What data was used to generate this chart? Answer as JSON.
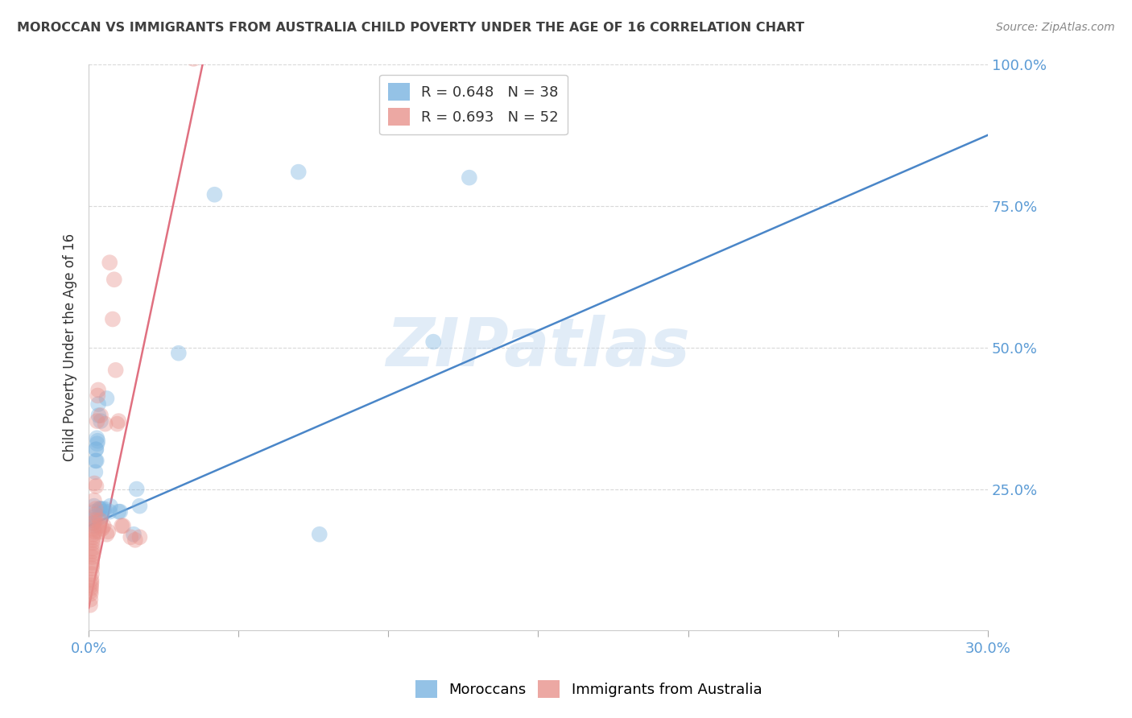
{
  "title": "MOROCCAN VS IMMIGRANTS FROM AUSTRALIA CHILD POVERTY UNDER THE AGE OF 16 CORRELATION CHART",
  "source": "Source: ZipAtlas.com",
  "ylabel_label": "Child Poverty Under the Age of 16",
  "blue_color": "#7ab3e0",
  "pink_color": "#e8928c",
  "blue_line_color": "#4a86c8",
  "pink_line_color": "#e07080",
  "axis_color": "#5b9bd5",
  "title_color": "#404040",
  "blue_scatter": [
    [
      0.0008,
      0.195
    ],
    [
      0.0015,
      0.19
    ],
    [
      0.0016,
      0.2
    ],
    [
      0.0017,
      0.185
    ],
    [
      0.0018,
      0.22
    ],
    [
      0.002,
      0.21
    ],
    [
      0.0022,
      0.28
    ],
    [
      0.0023,
      0.3
    ],
    [
      0.0024,
      0.32
    ],
    [
      0.0025,
      0.32
    ],
    [
      0.0026,
      0.3
    ],
    [
      0.0027,
      0.34
    ],
    [
      0.0028,
      0.33
    ],
    [
      0.003,
      0.335
    ],
    [
      0.0032,
      0.4
    ],
    [
      0.0033,
      0.38
    ],
    [
      0.0035,
      0.2
    ],
    [
      0.0036,
      0.215
    ],
    [
      0.0038,
      0.215
    ],
    [
      0.004,
      0.37
    ],
    [
      0.0042,
      0.2
    ],
    [
      0.0044,
      0.215
    ],
    [
      0.005,
      0.21
    ],
    [
      0.0052,
      0.215
    ],
    [
      0.006,
      0.41
    ],
    [
      0.007,
      0.21
    ],
    [
      0.0072,
      0.22
    ],
    [
      0.01,
      0.21
    ],
    [
      0.0105,
      0.21
    ],
    [
      0.015,
      0.17
    ],
    [
      0.016,
      0.25
    ],
    [
      0.017,
      0.22
    ],
    [
      0.03,
      0.49
    ],
    [
      0.042,
      0.77
    ],
    [
      0.07,
      0.81
    ],
    [
      0.077,
      0.17
    ],
    [
      0.115,
      0.51
    ],
    [
      0.127,
      0.8
    ]
  ],
  "pink_scatter": [
    [
      0.0005,
      0.045
    ],
    [
      0.0006,
      0.055
    ],
    [
      0.0007,
      0.065
    ],
    [
      0.0007,
      0.07
    ],
    [
      0.0008,
      0.075
    ],
    [
      0.0008,
      0.08
    ],
    [
      0.0009,
      0.085
    ],
    [
      0.0009,
      0.09
    ],
    [
      0.001,
      0.1
    ],
    [
      0.001,
      0.11
    ],
    [
      0.0011,
      0.115
    ],
    [
      0.0011,
      0.12
    ],
    [
      0.0012,
      0.13
    ],
    [
      0.0013,
      0.135
    ],
    [
      0.0013,
      0.14
    ],
    [
      0.0014,
      0.145
    ],
    [
      0.0014,
      0.155
    ],
    [
      0.0015,
      0.16
    ],
    [
      0.0015,
      0.165
    ],
    [
      0.0016,
      0.17
    ],
    [
      0.0016,
      0.18
    ],
    [
      0.0017,
      0.19
    ],
    [
      0.0018,
      0.23
    ],
    [
      0.0019,
      0.26
    ],
    [
      0.002,
      0.175
    ],
    [
      0.0021,
      0.195
    ],
    [
      0.0022,
      0.205
    ],
    [
      0.0023,
      0.215
    ],
    [
      0.0025,
      0.255
    ],
    [
      0.0028,
      0.37
    ],
    [
      0.003,
      0.415
    ],
    [
      0.0032,
      0.425
    ],
    [
      0.0034,
      0.175
    ],
    [
      0.0036,
      0.185
    ],
    [
      0.0038,
      0.195
    ],
    [
      0.004,
      0.38
    ],
    [
      0.0045,
      0.18
    ],
    [
      0.005,
      0.185
    ],
    [
      0.0055,
      0.365
    ],
    [
      0.006,
      0.17
    ],
    [
      0.0065,
      0.175
    ],
    [
      0.007,
      0.65
    ],
    [
      0.008,
      0.55
    ],
    [
      0.0085,
      0.62
    ],
    [
      0.009,
      0.46
    ],
    [
      0.0095,
      0.365
    ],
    [
      0.01,
      0.37
    ],
    [
      0.011,
      0.185
    ],
    [
      0.0115,
      0.185
    ],
    [
      0.014,
      0.165
    ],
    [
      0.017,
      0.165
    ],
    [
      0.035,
      1.01
    ],
    [
      0.0155,
      0.16
    ]
  ],
  "blue_line_x": [
    0.0,
    0.3
  ],
  "blue_line_y": [
    0.185,
    0.875
  ],
  "pink_line_x": [
    0.0,
    0.038
  ],
  "pink_line_y": [
    0.04,
    1.0
  ],
  "watermark": "ZIPatlas",
  "background_color": "#ffffff",
  "grid_color": "#d8d8d8",
  "xmin": 0.0,
  "xmax": 0.3,
  "ymin": 0.0,
  "ymax": 1.0,
  "marker_size": 200,
  "marker_alpha": 0.4
}
